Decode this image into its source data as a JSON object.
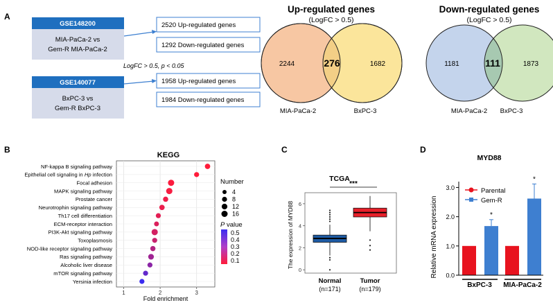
{
  "panel_labels": {
    "a": "A",
    "b": "B",
    "c": "C",
    "d": "D"
  },
  "colors": {
    "header_blue": "#1f6fbf",
    "box_fill": "#d6dbea",
    "arrow_blue": "#3c7fd0",
    "venn_up_left": "#f7c7a3",
    "venn_up_right": "#fbe59b",
    "venn_up_overlap": "#f3cf86",
    "venn_down_left": "#c4d4ec",
    "venn_down_right": "#d1e7bf",
    "venn_down_overlap": "#a7c9b1",
    "bar_parental": "#e8131f",
    "bar_gemr": "#3e7fd0",
    "box_normal": "#1e5ba4",
    "box_tumor": "#e8202a"
  },
  "panel_a": {
    "datasets": [
      {
        "id": "GSE148200",
        "comparison_line1": "MIA-PaCa-2 vs",
        "comparison_line2": "Gem-R MIA-PaCa-2",
        "up": "2520 Up-regulated genes",
        "down": "1292 Down-regulated genes"
      },
      {
        "id": "GSE140077",
        "comparison_line1": "BxPC-3 vs",
        "comparison_line2": "Gem-R BxPC-3",
        "up": "1958 Up-regulated genes",
        "down": "1984 Down-regulated genes"
      }
    ],
    "threshold": "LogFC > 0.5, p < 0.05",
    "venn_up": {
      "title": "Up-regulated genes",
      "subtitle": "(LogFC > 0.5)",
      "left_only": "2244",
      "overlap": "276",
      "right_only": "1682",
      "left_label": "MIA-PaCa-2",
      "right_label": "BxPC-3"
    },
    "venn_down": {
      "title": "Down-regulated genes",
      "subtitle": "(LogFC > 0.5)",
      "left_only": "1181",
      "overlap": "111",
      "right_only": "1873",
      "left_label": "MIA-PaCa-2",
      "right_label": "BxPC-3"
    }
  },
  "chart_data": [
    {
      "type": "scatter",
      "title": "KEGG",
      "xlabel": "Fold enrichment",
      "xlim": [
        0.8,
        3.5
      ],
      "xticks": [
        "1",
        "2",
        "3"
      ],
      "pathways": [
        {
          "name": "NF-kappa B signaling pathway",
          "fold": 3.3,
          "count": 10,
          "p": 0.01
        },
        {
          "name": "Epithelial cell signaling in Hp infection",
          "fold": 3.0,
          "count": 8,
          "p": 0.01
        },
        {
          "name": "Focal adhesion",
          "fold": 2.3,
          "count": 16,
          "p": 0.02
        },
        {
          "name": "MAPK signaling pathway",
          "fold": 2.25,
          "count": 16,
          "p": 0.03
        },
        {
          "name": "Prostate cancer",
          "fold": 2.15,
          "count": 9,
          "p": 0.05
        },
        {
          "name": "Neurotrophin signaling pathway",
          "fold": 2.05,
          "count": 10,
          "p": 0.06
        },
        {
          "name": "Th17 cell differentiation",
          "fold": 1.95,
          "count": 8,
          "p": 0.08
        },
        {
          "name": "ECM-receptor interaction",
          "fold": 1.9,
          "count": 7,
          "p": 0.1
        },
        {
          "name": "PI3K-Akt signaling pathway",
          "fold": 1.85,
          "count": 16,
          "p": 0.12
        },
        {
          "name": "Toxoplasmosis",
          "fold": 1.85,
          "count": 8,
          "p": 0.15
        },
        {
          "name": "NOD-like receptor signaling pathway",
          "fold": 1.8,
          "count": 9,
          "p": 0.2
        },
        {
          "name": "Ras signaling pathway",
          "fold": 1.75,
          "count": 12,
          "p": 0.25
        },
        {
          "name": "Alcoholic liver disease",
          "fold": 1.72,
          "count": 8,
          "p": 0.3
        },
        {
          "name": "mTOR signaling pathway",
          "fold": 1.6,
          "count": 8,
          "p": 0.4
        },
        {
          "name": "Yersinia infection",
          "fold": 1.5,
          "count": 8,
          "p": 0.5
        }
      ],
      "size_legend": {
        "title": "Number",
        "values": [
          "4",
          "8",
          "12",
          "16"
        ]
      },
      "color_legend": {
        "title_p": "P",
        "title_rest": " value",
        "values": [
          "0.5",
          "0.4",
          "0.3",
          "0.2",
          "0.1"
        ]
      }
    },
    {
      "type": "box",
      "title": "TCGA",
      "ylabel": "The expression of MYD88",
      "ylim": [
        -0.3,
        7
      ],
      "yticks": [
        "0",
        "2",
        "4",
        "6"
      ],
      "significance": "***",
      "groups": [
        {
          "name": "Normal",
          "n": "(n=171)",
          "min": 1.3,
          "q1": 2.5,
          "median": 2.85,
          "q3": 3.15,
          "max": 4.1,
          "outliers": [
            5.4,
            5.2,
            5.0,
            4.8,
            4.6,
            4.4,
            1.1,
            0.9,
            0.0
          ]
        },
        {
          "name": "Tumor",
          "n": "(n=179)",
          "min": 3.5,
          "q1": 4.8,
          "median": 5.2,
          "q3": 5.6,
          "max": 6.7,
          "outliers": [
            2.7,
            2.2,
            1.8
          ]
        }
      ]
    },
    {
      "type": "bar",
      "title": "MYD88",
      "ylabel": "Relative mRNA expression",
      "ylim": [
        0,
        3.2
      ],
      "yticks": [
        "0.0",
        "1.0",
        "2.0",
        "3.0"
      ],
      "categories": [
        "BxPC-3",
        "MIA-PaCa-2"
      ],
      "series": [
        {
          "name": "Parental",
          "values": [
            1.0,
            1.0
          ],
          "errors": [
            0,
            0
          ]
        },
        {
          "name": "Gem-R",
          "values": [
            1.68,
            2.62
          ],
          "errors": [
            0.22,
            0.5
          ]
        }
      ],
      "significance": [
        "*",
        "*"
      ]
    }
  ]
}
